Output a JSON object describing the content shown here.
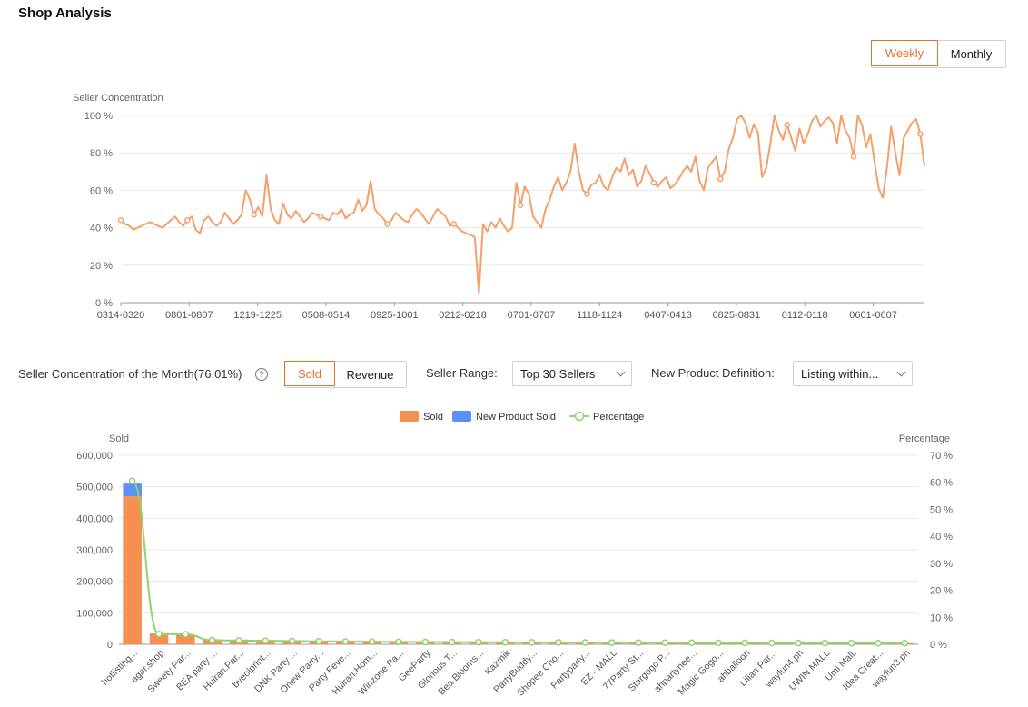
{
  "page": {
    "title": "Shop Analysis"
  },
  "period_toggle": {
    "weekly": "Weekly",
    "monthly": "Monthly",
    "selected": "weekly"
  },
  "concentration_chart": {
    "chart_data": {
      "type": "line",
      "ylabel": "Seller Concentration",
      "ylim": [
        0,
        100
      ],
      "y_ticks": [
        "0 %",
        "20 %",
        "40 %",
        "60 %",
        "80 %",
        "100 %"
      ],
      "x_tick_labels": [
        "0314-0320",
        "0801-0807",
        "1219-1225",
        "0508-0514",
        "0925-1001",
        "0212-0218",
        "0701-0707",
        "1118-1124",
        "0407-0413",
        "0825-0831",
        "0112-0118",
        "0601-0607"
      ],
      "series": [
        {
          "color": "#f5a06a",
          "values": [
            44,
            42,
            41,
            39,
            40,
            41,
            42,
            43,
            42,
            41,
            40,
            42,
            44,
            46,
            43,
            41,
            44,
            46,
            39,
            37,
            44,
            46,
            43,
            41,
            43,
            48,
            45,
            42,
            44,
            47,
            60,
            55,
            47,
            51,
            46,
            68,
            50,
            44,
            42,
            53,
            47,
            45,
            49,
            46,
            43,
            45,
            48,
            47,
            46,
            45,
            44,
            48,
            47,
            50,
            45,
            47,
            48,
            55,
            49,
            52,
            65,
            50,
            47,
            45,
            42,
            44,
            48,
            46,
            44,
            43,
            47,
            50,
            48,
            45,
            42,
            46,
            50,
            48,
            46,
            41,
            42,
            40,
            38,
            37,
            36,
            35,
            5,
            42,
            38,
            43,
            40,
            45,
            41,
            38,
            40,
            64,
            52,
            62,
            58,
            46,
            43,
            40,
            50,
            55,
            62,
            67,
            60,
            64,
            70,
            85,
            70,
            60,
            58,
            63,
            64,
            68,
            62,
            60,
            67,
            72,
            70,
            77,
            68,
            71,
            62,
            65,
            73,
            69,
            64,
            62,
            65,
            67,
            61,
            63,
            66,
            70,
            73,
            70,
            78,
            65,
            60,
            72,
            75,
            78,
            66,
            70,
            82,
            88,
            98,
            100,
            96,
            88,
            95,
            91,
            67,
            72,
            85,
            100,
            92,
            87,
            95,
            88,
            81,
            93,
            85,
            90,
            97,
            100,
            94,
            97,
            99,
            96,
            85,
            100,
            92,
            88,
            78,
            100,
            95,
            83,
            90,
            75,
            61,
            56,
            72,
            94,
            80,
            68,
            88,
            92,
            96,
            98,
            90,
            73
          ]
        }
      ]
    }
  },
  "controls": {
    "month_label": "Seller Concentration of the Month(76.01%)",
    "help_icon": "?",
    "sold": "Sold",
    "revenue": "Revenue",
    "metric_selected": "sold",
    "seller_range_label": "Seller Range:",
    "seller_range_value": "Top 30 Sellers",
    "new_product_label": "New Product Definition:",
    "new_product_value": "Listing within..."
  },
  "seller_chart": {
    "chart_data": {
      "type": "bar",
      "legend": [
        "Sold",
        "New Product Sold",
        "Percentage"
      ],
      "legend_position": "top-center",
      "ylabel_left": "Sold",
      "ylabel_right": "Percentage",
      "ylim_left": [
        0,
        600000
      ],
      "ylim_right": [
        0,
        70
      ],
      "y_ticks_left": [
        "0",
        "100,000",
        "200,000",
        "300,000",
        "400,000",
        "500,000",
        "600,000"
      ],
      "y_ticks_right": [
        "0 %",
        "10 %",
        "20 %",
        "30 %",
        "40 %",
        "50 %",
        "60 %",
        "70 %"
      ],
      "categories": [
        "hotlisting...",
        "agar.shop",
        "Sweety Par...",
        "BEA party ...",
        "Huiran.Par...",
        "byeolprint...",
        "DNK Party ...",
        "Onew Party...",
        "Party Feve...",
        "Huiran.Hom...",
        "Winzone Pa...",
        "GeeParty",
        "Glorious T...",
        "Bea Blooms...",
        "Kazmik",
        "PartyBuddy...",
        "Shopee Cho...",
        "Partyparty...",
        "EZ - MALL",
        "77Party St...",
        "Stargogo P...",
        "ahpartynee...",
        "Magic Gogo...",
        "ahballoon",
        "Lilian Par...",
        "wayfun4.ph",
        "UWIN MALL",
        "Umi Mall.",
        "Idea Creat...",
        "wayfun3.ph"
      ],
      "series": [
        {
          "name": "Sold",
          "color": "#f78f50",
          "values": [
            470000,
            32000,
            28000,
            15000,
            14000,
            13000,
            12000,
            10000,
            9000,
            8500,
            8000,
            7500,
            7000,
            6800,
            6500,
            6200,
            6000,
            5800,
            5600,
            5400,
            5200,
            5000,
            4800,
            4600,
            4400,
            4200,
            4000,
            3800,
            3600,
            3400
          ]
        },
        {
          "name": "New Product Sold",
          "color": "#5b8ff9",
          "values": [
            40000,
            2000,
            1500,
            1000,
            800,
            700,
            600,
            500,
            500,
            400,
            400,
            300,
            300,
            300,
            300,
            200,
            200,
            200,
            200,
            200,
            200,
            200,
            100,
            100,
            100,
            100,
            100,
            100,
            100,
            100
          ]
        },
        {
          "name": "Percentage",
          "color": "#8fd46b",
          "values": [
            60.5,
            3.8,
            3.7,
            1.5,
            1.4,
            1.3,
            1.2,
            1.1,
            1.0,
            0.95,
            0.9,
            0.85,
            0.8,
            0.78,
            0.75,
            0.72,
            0.7,
            0.68,
            0.65,
            0.62,
            0.6,
            0.58,
            0.55,
            0.52,
            0.5,
            0.48,
            0.46,
            0.44,
            0.42,
            0.4
          ]
        }
      ]
    }
  }
}
